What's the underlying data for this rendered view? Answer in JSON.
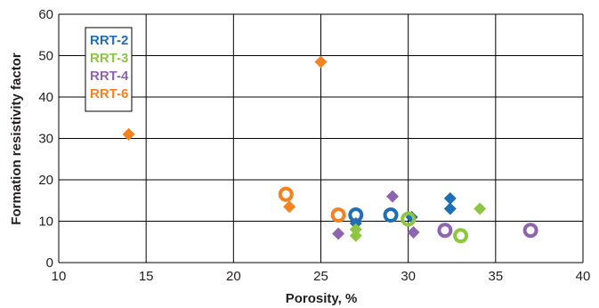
{
  "chart_data": {
    "type": "scatter",
    "xlabel": "Porosity, %",
    "ylabel": "Formation resistivity factor",
    "xlim": [
      10,
      40
    ],
    "ylim": [
      0,
      60
    ],
    "x_ticks": [
      "10",
      "15",
      "20",
      "25",
      "30",
      "35",
      "40"
    ],
    "y_ticks": [
      "0",
      "10",
      "20",
      "30",
      "40",
      "50",
      "60"
    ],
    "grid": true,
    "legend_position": "top-left",
    "series": [
      {
        "name": "RRT-2",
        "color": "#1f6fb5",
        "points": [
          {
            "x": 27,
            "y": 11.5,
            "marker": "ring"
          },
          {
            "x": 29,
            "y": 11.5,
            "marker": "ring"
          },
          {
            "x": 27,
            "y": 9.5,
            "marker": "diamond"
          },
          {
            "x": 30.2,
            "y": 11,
            "marker": "diamond"
          },
          {
            "x": 32.4,
            "y": 15.5,
            "marker": "diamond"
          },
          {
            "x": 32.4,
            "y": 13,
            "marker": "diamond"
          }
        ]
      },
      {
        "name": "RRT-3",
        "color": "#8dc63f",
        "points": [
          {
            "x": 30,
            "y": 10.5,
            "marker": "ring"
          },
          {
            "x": 33,
            "y": 6.5,
            "marker": "ring"
          },
          {
            "x": 27,
            "y": 8,
            "marker": "diamond"
          },
          {
            "x": 27,
            "y": 6.5,
            "marker": "diamond"
          },
          {
            "x": 34.1,
            "y": 13,
            "marker": "diamond"
          }
        ]
      },
      {
        "name": "RRT-4",
        "color": "#8c64b0",
        "points": [
          {
            "x": 32.1,
            "y": 7.8,
            "marker": "ring"
          },
          {
            "x": 37,
            "y": 7.8,
            "marker": "ring"
          },
          {
            "x": 26,
            "y": 7,
            "marker": "diamond"
          },
          {
            "x": 29.1,
            "y": 16,
            "marker": "diamond"
          },
          {
            "x": 30.3,
            "y": 7.3,
            "marker": "diamond"
          }
        ]
      },
      {
        "name": "RRT-6",
        "color": "#f38220",
        "points": [
          {
            "x": 23,
            "y": 16.5,
            "marker": "ring"
          },
          {
            "x": 26,
            "y": 11.5,
            "marker": "ring"
          },
          {
            "x": 14,
            "y": 31,
            "marker": "diamond"
          },
          {
            "x": 25,
            "y": 48.5,
            "marker": "diamond"
          },
          {
            "x": 23.2,
            "y": 13.5,
            "marker": "diamond"
          }
        ]
      }
    ]
  }
}
